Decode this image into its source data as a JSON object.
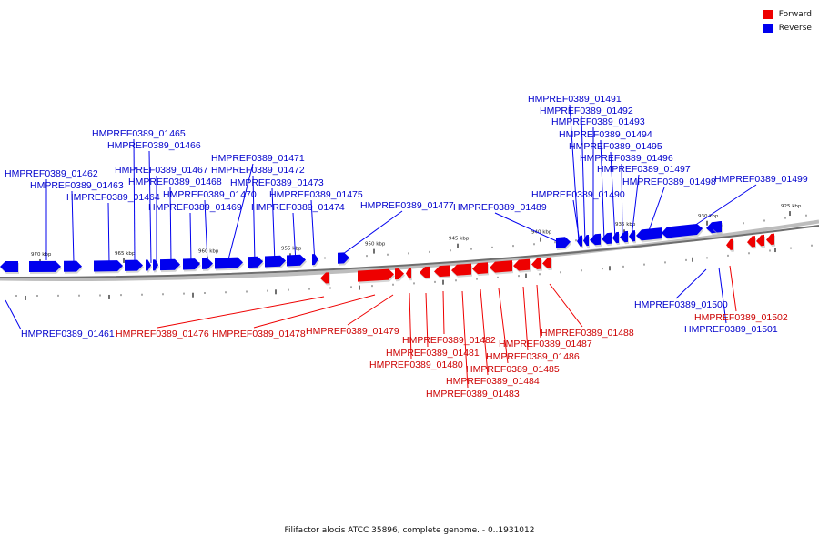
{
  "title": "Filifactor alocis ATCC 35896, complete genome. - 0..1931012",
  "legend": [
    {
      "label": "Forward",
      "color": "#ee0000"
    },
    {
      "label": "Reverse",
      "color": "#0000ee"
    }
  ],
  "colors": {
    "forward": "#ee0000",
    "reverse": "#0000ee",
    "backbone": "#808080"
  },
  "kbp_ticks": [
    "970 kbp",
    "965 kbp",
    "960 kbp",
    "955 kbp",
    "950 kbp",
    "945 kbp",
    "940 kbp",
    "935 kbp",
    "930 kbp",
    "925 kbp"
  ],
  "genes": [
    {
      "name": "HMPREF0389_01461",
      "strand": "reverse"
    },
    {
      "name": "HMPREF0389_01462",
      "strand": "reverse"
    },
    {
      "name": "HMPREF0389_01463",
      "strand": "reverse"
    },
    {
      "name": "HMPREF0389_01464",
      "strand": "reverse"
    },
    {
      "name": "HMPREF0389_01465",
      "strand": "reverse"
    },
    {
      "name": "HMPREF0389_01466",
      "strand": "reverse"
    },
    {
      "name": "HMPREF0389_01467",
      "strand": "reverse"
    },
    {
      "name": "HMPREF0389_01468",
      "strand": "reverse"
    },
    {
      "name": "HMPREF0389_01469",
      "strand": "reverse"
    },
    {
      "name": "HMPREF0389_01470",
      "strand": "reverse"
    },
    {
      "name": "HMPREF0389_01471",
      "strand": "reverse"
    },
    {
      "name": "HMPREF0389_01472",
      "strand": "reverse"
    },
    {
      "name": "HMPREF0389_01473",
      "strand": "reverse"
    },
    {
      "name": "HMPREF0389_01474",
      "strand": "reverse"
    },
    {
      "name": "HMPREF0389_01475",
      "strand": "reverse"
    },
    {
      "name": "HMPREF0389_01476",
      "strand": "forward"
    },
    {
      "name": "HMPREF0389_01477",
      "strand": "reverse"
    },
    {
      "name": "HMPREF0389_01478",
      "strand": "forward"
    },
    {
      "name": "HMPREF0389_01479",
      "strand": "forward"
    },
    {
      "name": "HMPREF0389_01480",
      "strand": "forward"
    },
    {
      "name": "HMPREF0389_01481",
      "strand": "forward"
    },
    {
      "name": "HMPREF0389_01482",
      "strand": "forward"
    },
    {
      "name": "HMPREF0389_01483",
      "strand": "forward"
    },
    {
      "name": "HMPREF0389_01484",
      "strand": "forward"
    },
    {
      "name": "HMPREF0389_01485",
      "strand": "forward"
    },
    {
      "name": "HMPREF0389_01486",
      "strand": "forward"
    },
    {
      "name": "HMPREF0389_01487",
      "strand": "forward"
    },
    {
      "name": "HMPREF0389_01488",
      "strand": "forward"
    },
    {
      "name": "HMPREF0389_01489",
      "strand": "reverse"
    },
    {
      "name": "HMPREF0389_01490",
      "strand": "reverse"
    },
    {
      "name": "HMPREF0389_01491",
      "strand": "reverse"
    },
    {
      "name": "HMPREF0389_01492",
      "strand": "reverse"
    },
    {
      "name": "HMPREF0389_01493",
      "strand": "reverse"
    },
    {
      "name": "HMPREF0389_01494",
      "strand": "reverse"
    },
    {
      "name": "HMPREF0389_01495",
      "strand": "reverse"
    },
    {
      "name": "HMPREF0389_01496",
      "strand": "reverse"
    },
    {
      "name": "HMPREF0389_01497",
      "strand": "reverse"
    },
    {
      "name": "HMPREF0389_01498",
      "strand": "reverse"
    },
    {
      "name": "HMPREF0389_01499",
      "strand": "reverse"
    },
    {
      "name": "HMPREF0389_01500",
      "strand": "reverse"
    },
    {
      "name": "HMPREF0389_01501",
      "strand": "reverse"
    },
    {
      "name": "HMPREF0389_01502",
      "strand": "forward"
    }
  ]
}
